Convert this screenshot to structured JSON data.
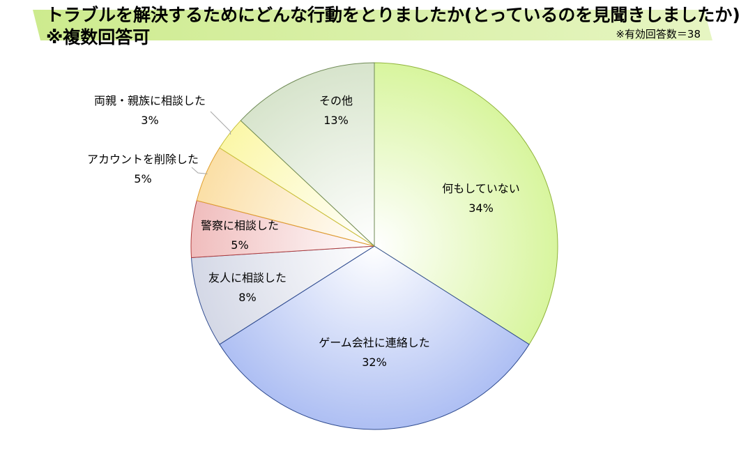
{
  "header": {
    "title_line1": "トラブルを解決するためにどんな行動をとりましたか(とっているのを見聞きしましたか)",
    "title_line2": "※複数回答可",
    "note": "※有効回答数＝38"
  },
  "chart_data": {
    "type": "pie",
    "title": "トラブルを解決するためにどんな行動をとりましたか(とっているのを見聞きしましたか) ※複数回答可",
    "start": "12 o'clock, clockwise",
    "legend": "none (labels on slices)",
    "slices": [
      {
        "label": "何もしていない",
        "value": 34,
        "display": "34%",
        "color": "#d8f59e",
        "stroke": "#8fb33a"
      },
      {
        "label": "ゲーム会社に連絡した",
        "value": 32,
        "display": "32%",
        "color": "#aebff3",
        "stroke": "#2e4a8f"
      },
      {
        "label": "友人に相談した",
        "value": 8,
        "display": "8%",
        "color": "#d4d8e6",
        "stroke": "#2e4a8f"
      },
      {
        "label": "警察に相談した",
        "value": 5,
        "display": "5%",
        "color": "#f0bdbd",
        "stroke": "#b03a3a"
      },
      {
        "label": "アカウントを削除した",
        "value": 5,
        "display": "5%",
        "color": "#fbdfa6",
        "stroke": "#e0a030"
      },
      {
        "label": "両親・親族に相談した",
        "value": 3,
        "display": "3%",
        "color": "#fbf7a8",
        "stroke": "#c8c03a"
      },
      {
        "label": "その他",
        "value": 13,
        "display": "13%",
        "color": "#d7e4cc",
        "stroke": "#6f8a55"
      }
    ]
  }
}
